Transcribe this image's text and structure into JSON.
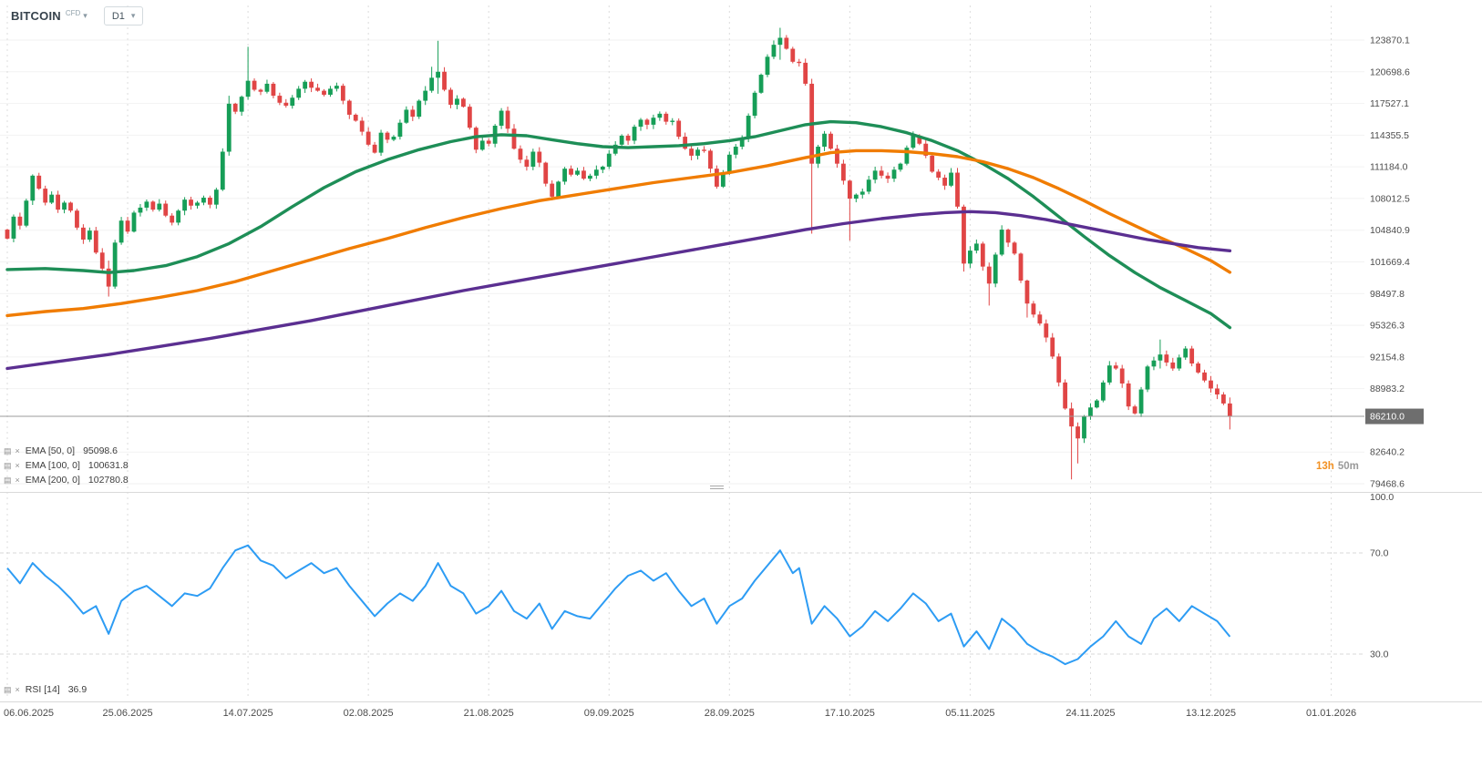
{
  "header": {
    "instrument": "BITCOIN",
    "instrument_type": "CFD",
    "timeframe": "D1"
  },
  "countdown": {
    "hours": "13h",
    "minutes": "50m"
  },
  "indicators": [
    {
      "id": "ema50",
      "label": "EMA [50, 0]",
      "value": "95098.6",
      "color": "#1e8e57",
      "period": 50
    },
    {
      "id": "ema100",
      "label": "EMA [100, 0]",
      "value": "100631.8",
      "color": "#f07c00",
      "period": 100
    },
    {
      "id": "ema200",
      "label": "EMA [200, 0]",
      "value": "102780.8",
      "color": "#5b2f91",
      "period": 200
    }
  ],
  "rsi": {
    "label": "RSI [14]",
    "value": "36.9"
  },
  "colors": {
    "up": "#169e57",
    "down": "#e04545",
    "vgrid": "#dcdcdc",
    "hgrid": "#f2f2f2",
    "level": "#d8d8d8",
    "divider": "#d9d9d9",
    "price_line": "#9b9b9b",
    "badge_bg": "#6e6e6e",
    "axis_text": "#4c4c4c",
    "countdown_hours": "#f29123",
    "countdown_minutes": "#9a9a9a"
  },
  "chart_data": {
    "type": "candlestick",
    "title": "BITCOIN CFD, D1",
    "x_labels": [
      "06.06.2025",
      "25.06.2025",
      "14.07.2025",
      "02.08.2025",
      "21.08.2025",
      "09.09.2025",
      "28.09.2025",
      "17.10.2025",
      "05.11.2025",
      "24.11.2025",
      "13.12.2025",
      "01.01.2026"
    ],
    "x_label_interval_days": 19,
    "price_ticks": [
      123870.1,
      120698.6,
      117527.1,
      114355.5,
      111184.0,
      108012.5,
      104840.9,
      101669.4,
      98497.8,
      95326.3,
      92154.8,
      88983.2,
      82640.2,
      79468.6
    ],
    "current_price": 86210.0,
    "candles": {
      "closes": [
        104000,
        106200,
        105300,
        107800,
        110300,
        109000,
        107600,
        108400,
        106900,
        107600,
        106800,
        105100,
        103900,
        104800,
        102600,
        101000,
        99200,
        103600,
        105800,
        104700,
        106600,
        107100,
        107700,
        106900,
        107500,
        106300,
        105600,
        106800,
        107900,
        107300,
        107600,
        108100,
        107400,
        108900,
        112700,
        117500,
        116700,
        118200,
        119800,
        118900,
        118700,
        119500,
        118300,
        117600,
        117300,
        118100,
        119000,
        119700,
        119100,
        118800,
        118400,
        119000,
        119300,
        117800,
        116400,
        115800,
        114700,
        113400,
        112600,
        114600,
        113900,
        114200,
        115600,
        116900,
        116200,
        117800,
        118800,
        120100,
        120700,
        118900,
        117400,
        118000,
        117200,
        115100,
        112900,
        113800,
        113500,
        115300,
        116800,
        115000,
        113000,
        111900,
        111200,
        112700,
        111600,
        109500,
        108200,
        109700,
        111000,
        110400,
        110800,
        110000,
        110300,
        110900,
        111200,
        112500,
        113400,
        114300,
        113800,
        115200,
        115900,
        115400,
        116100,
        116500,
        115700,
        115800,
        114200,
        113000,
        112300,
        112900,
        112800,
        111000,
        109200,
        110600,
        112400,
        113200,
        114000,
        116300,
        118600,
        120400,
        122200,
        123400,
        124100,
        123000,
        121700,
        121600,
        119500,
        111500,
        113200,
        114500,
        113000,
        111500,
        109800,
        108000,
        108400,
        108700,
        109900,
        110800,
        110300,
        110000,
        110900,
        111500,
        113100,
        114300,
        113500,
        112300,
        110700,
        110100,
        109300,
        110600,
        107200,
        101500,
        102800,
        103500,
        101200,
        99500,
        102400,
        104900,
        103600,
        102500,
        99800,
        97500,
        96400,
        95500,
        94100,
        92200,
        89600,
        87000,
        85200,
        84000,
        86200,
        87100,
        87800,
        89600,
        91300,
        91000,
        89500,
        87200,
        86500,
        88900,
        91200,
        91800,
        92400,
        91600,
        91000,
        92100,
        93000,
        91500,
        90600,
        89800,
        89000,
        88400,
        87500,
        86210
      ],
      "wicks": {
        "16": [
          101800,
          98200
        ],
        "35": [
          118300,
          112300
        ],
        "38": [
          123200,
          117900
        ],
        "67": [
          121200,
          118600
        ],
        "68": [
          123800,
          118500
        ],
        "122": [
          125100,
          121900
        ],
        "127": [
          120000,
          104500
        ],
        "133": [
          109900,
          103800
        ],
        "151": [
          107400,
          100700
        ],
        "155": [
          101600,
          97300
        ],
        "161": [
          99900,
          96100
        ],
        "168": [
          87600,
          79900
        ],
        "169": [
          85600,
          81500
        ],
        "182": [
          93900,
          91000
        ],
        "193": [
          88100,
          84900
        ]
      }
    },
    "overlays": [
      {
        "name": "EMA 50",
        "period": 50,
        "color": "#1e8e57",
        "points": [
          [
            0,
            100900
          ],
          [
            6,
            101000
          ],
          [
            12,
            100800
          ],
          [
            16,
            100600
          ],
          [
            20,
            100800
          ],
          [
            25,
            101300
          ],
          [
            30,
            102200
          ],
          [
            35,
            103500
          ],
          [
            40,
            105200
          ],
          [
            45,
            107200
          ],
          [
            50,
            109100
          ],
          [
            55,
            110700
          ],
          [
            60,
            111900
          ],
          [
            65,
            112900
          ],
          [
            70,
            113700
          ],
          [
            74,
            114200
          ],
          [
            78,
            114400
          ],
          [
            82,
            114300
          ],
          [
            86,
            113900
          ],
          [
            90,
            113500
          ],
          [
            94,
            113200
          ],
          [
            98,
            113100
          ],
          [
            102,
            113200
          ],
          [
            106,
            113300
          ],
          [
            110,
            113500
          ],
          [
            114,
            113800
          ],
          [
            118,
            114200
          ],
          [
            122,
            114800
          ],
          [
            126,
            115400
          ],
          [
            130,
            115700
          ],
          [
            134,
            115600
          ],
          [
            138,
            115200
          ],
          [
            142,
            114600
          ],
          [
            146,
            113800
          ],
          [
            150,
            112800
          ],
          [
            154,
            111500
          ],
          [
            158,
            110000
          ],
          [
            162,
            108200
          ],
          [
            166,
            106200
          ],
          [
            170,
            104200
          ],
          [
            174,
            102300
          ],
          [
            178,
            100600
          ],
          [
            182,
            99100
          ],
          [
            186,
            97800
          ],
          [
            190,
            96500
          ],
          [
            193,
            95100
          ]
        ]
      },
      {
        "name": "EMA 100",
        "period": 100,
        "color": "#f07c00",
        "points": [
          [
            0,
            96300
          ],
          [
            6,
            96700
          ],
          [
            12,
            97000
          ],
          [
            18,
            97500
          ],
          [
            24,
            98100
          ],
          [
            30,
            98800
          ],
          [
            36,
            99700
          ],
          [
            42,
            100800
          ],
          [
            48,
            101900
          ],
          [
            54,
            103000
          ],
          [
            60,
            104000
          ],
          [
            66,
            105100
          ],
          [
            72,
            106100
          ],
          [
            78,
            107000
          ],
          [
            84,
            107800
          ],
          [
            90,
            108400
          ],
          [
            96,
            109000
          ],
          [
            102,
            109600
          ],
          [
            108,
            110100
          ],
          [
            114,
            110600
          ],
          [
            120,
            111300
          ],
          [
            126,
            112100
          ],
          [
            130,
            112600
          ],
          [
            134,
            112800
          ],
          [
            138,
            112800
          ],
          [
            142,
            112700
          ],
          [
            146,
            112500
          ],
          [
            150,
            112200
          ],
          [
            154,
            111700
          ],
          [
            158,
            111000
          ],
          [
            162,
            110100
          ],
          [
            166,
            109000
          ],
          [
            170,
            107800
          ],
          [
            174,
            106500
          ],
          [
            178,
            105300
          ],
          [
            182,
            104100
          ],
          [
            186,
            103000
          ],
          [
            190,
            101800
          ],
          [
            193,
            100630
          ]
        ]
      },
      {
        "name": "EMA 200",
        "period": 200,
        "color": "#5b2f91",
        "points": [
          [
            0,
            91000
          ],
          [
            8,
            91700
          ],
          [
            16,
            92400
          ],
          [
            24,
            93200
          ],
          [
            32,
            94000
          ],
          [
            40,
            94900
          ],
          [
            48,
            95800
          ],
          [
            56,
            96800
          ],
          [
            64,
            97800
          ],
          [
            72,
            98800
          ],
          [
            80,
            99700
          ],
          [
            88,
            100600
          ],
          [
            96,
            101500
          ],
          [
            104,
            102400
          ],
          [
            112,
            103300
          ],
          [
            120,
            104200
          ],
          [
            126,
            104900
          ],
          [
            132,
            105500
          ],
          [
            138,
            106000
          ],
          [
            144,
            106400
          ],
          [
            148,
            106600
          ],
          [
            152,
            106700
          ],
          [
            156,
            106600
          ],
          [
            160,
            106300
          ],
          [
            164,
            105900
          ],
          [
            168,
            105400
          ],
          [
            172,
            104900
          ],
          [
            176,
            104400
          ],
          [
            180,
            103900
          ],
          [
            184,
            103500
          ],
          [
            188,
            103100
          ],
          [
            193,
            102780
          ]
        ]
      }
    ],
    "rsi_panel": {
      "label": "RSI [14]",
      "current": 36.9,
      "color": "#2d9cf4",
      "ticks": [
        100.0,
        70.0,
        30.0
      ],
      "levels": [
        70,
        30
      ],
      "points": [
        [
          0,
          64
        ],
        [
          2,
          58
        ],
        [
          4,
          66
        ],
        [
          6,
          61
        ],
        [
          8,
          57
        ],
        [
          10,
          52
        ],
        [
          12,
          46
        ],
        [
          14,
          49
        ],
        [
          16,
          38
        ],
        [
          18,
          51
        ],
        [
          20,
          55
        ],
        [
          22,
          57
        ],
        [
          24,
          53
        ],
        [
          26,
          49
        ],
        [
          28,
          54
        ],
        [
          30,
          53
        ],
        [
          32,
          56
        ],
        [
          34,
          64
        ],
        [
          36,
          71
        ],
        [
          38,
          73
        ],
        [
          40,
          67
        ],
        [
          42,
          65
        ],
        [
          44,
          60
        ],
        [
          46,
          63
        ],
        [
          48,
          66
        ],
        [
          50,
          62
        ],
        [
          52,
          64
        ],
        [
          54,
          57
        ],
        [
          56,
          51
        ],
        [
          58,
          45
        ],
        [
          60,
          50
        ],
        [
          62,
          54
        ],
        [
          64,
          51
        ],
        [
          66,
          57
        ],
        [
          68,
          66
        ],
        [
          70,
          57
        ],
        [
          72,
          54
        ],
        [
          74,
          46
        ],
        [
          76,
          49
        ],
        [
          78,
          55
        ],
        [
          80,
          47
        ],
        [
          82,
          44
        ],
        [
          84,
          50
        ],
        [
          86,
          40
        ],
        [
          88,
          47
        ],
        [
          90,
          45
        ],
        [
          92,
          44
        ],
        [
          94,
          50
        ],
        [
          96,
          56
        ],
        [
          98,
          61
        ],
        [
          100,
          63
        ],
        [
          102,
          59
        ],
        [
          104,
          62
        ],
        [
          106,
          55
        ],
        [
          108,
          49
        ],
        [
          110,
          52
        ],
        [
          112,
          42
        ],
        [
          114,
          49
        ],
        [
          116,
          52
        ],
        [
          118,
          59
        ],
        [
          120,
          65
        ],
        [
          122,
          71
        ],
        [
          124,
          62
        ],
        [
          125,
          64
        ],
        [
          127,
          42
        ],
        [
          129,
          49
        ],
        [
          131,
          44
        ],
        [
          133,
          37
        ],
        [
          135,
          41
        ],
        [
          137,
          47
        ],
        [
          139,
          43
        ],
        [
          141,
          48
        ],
        [
          143,
          54
        ],
        [
          145,
          50
        ],
        [
          147,
          43
        ],
        [
          149,
          46
        ],
        [
          151,
          33
        ],
        [
          153,
          39
        ],
        [
          155,
          32
        ],
        [
          157,
          44
        ],
        [
          159,
          40
        ],
        [
          161,
          34
        ],
        [
          163,
          31
        ],
        [
          165,
          29
        ],
        [
          167,
          26
        ],
        [
          169,
          28
        ],
        [
          171,
          33
        ],
        [
          173,
          37
        ],
        [
          175,
          43
        ],
        [
          177,
          37
        ],
        [
          179,
          34
        ],
        [
          181,
          44
        ],
        [
          183,
          48
        ],
        [
          185,
          43
        ],
        [
          187,
          49
        ],
        [
          189,
          46
        ],
        [
          191,
          43
        ],
        [
          193,
          36.9
        ]
      ]
    }
  }
}
